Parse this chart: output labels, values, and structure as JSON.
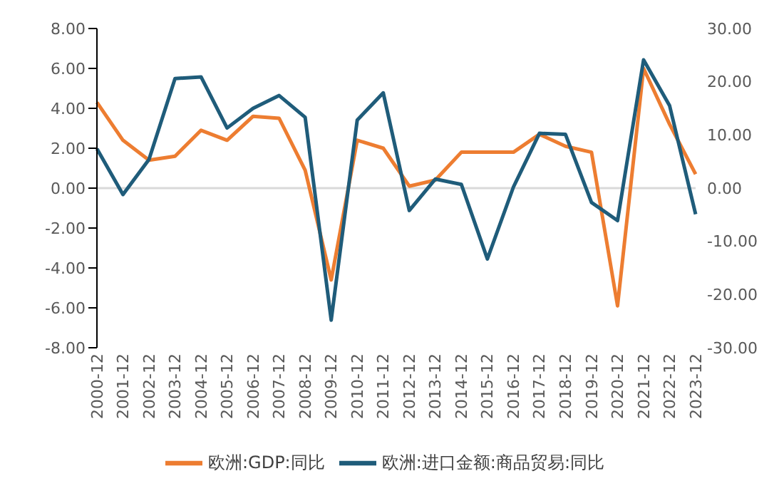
{
  "chart_data": {
    "type": "line",
    "categories": [
      "2000-12",
      "2001-12",
      "2002-12",
      "2003-12",
      "2004-12",
      "2005-12",
      "2006-12",
      "2007-12",
      "2008-12",
      "2009-12",
      "2010-12",
      "2011-12",
      "2012-12",
      "2013-12",
      "2014-12",
      "2015-12",
      "2016-12",
      "2017-12",
      "2018-12",
      "2019-12",
      "2020-12",
      "2021-12",
      "2022-12",
      "2023-12"
    ],
    "series": [
      {
        "name": "欧洲:GDP:同比",
        "color": "#ed7d31",
        "values": [
          4.3,
          2.4,
          1.4,
          1.6,
          2.9,
          2.4,
          3.6,
          3.5,
          0.9,
          -4.6,
          2.4,
          2.0,
          0.1,
          0.4,
          1.8,
          1.8,
          1.8,
          2.7,
          2.1,
          1.8,
          -5.9,
          6.0,
          3.2,
          0.7
        ]
      },
      {
        "name": "欧洲:进口金额:商品贸易:同比",
        "color": "#1f5c7a",
        "axis": "y2",
        "values": [
          7.4,
          -1.2,
          5.4,
          20.6,
          20.9,
          11.3,
          15.0,
          17.4,
          13.3,
          -24.8,
          12.8,
          17.9,
          -4.2,
          1.7,
          0.7,
          -13.3,
          0.2,
          10.3,
          10.1,
          -2.7,
          -6.1,
          24.1,
          15.5,
          -4.9
        ]
      }
    ],
    "ylim": [
      -8,
      8
    ],
    "yticks": [
      {
        "value": -8,
        "label": "-8.00"
      },
      {
        "value": -6,
        "label": "-6.00"
      },
      {
        "value": -4,
        "label": "-4.00"
      },
      {
        "value": -2,
        "label": "-2.00"
      },
      {
        "value": 0,
        "label": "0.00"
      },
      {
        "value": 2,
        "label": "2.00"
      },
      {
        "value": 4,
        "label": "4.00"
      },
      {
        "value": 6,
        "label": "6.00"
      },
      {
        "value": 8,
        "label": "8.00"
      }
    ],
    "y2lim": [
      -30,
      30
    ],
    "y2ticks": [
      {
        "value": -30,
        "label": "-30.00"
      },
      {
        "value": -20,
        "label": "-20.00"
      },
      {
        "value": -10,
        "label": "-10.00"
      },
      {
        "value": 0,
        "label": "0.00"
      },
      {
        "value": 10,
        "label": "10.00"
      },
      {
        "value": 20,
        "label": "20.00"
      },
      {
        "value": 30,
        "label": "30.00"
      }
    ],
    "ref_lines": [
      {
        "axis": "y",
        "value": 0,
        "color": "#d9d9d9"
      }
    ],
    "grid": false,
    "legend": "bottom",
    "marker": "none",
    "line_style": "solid"
  }
}
